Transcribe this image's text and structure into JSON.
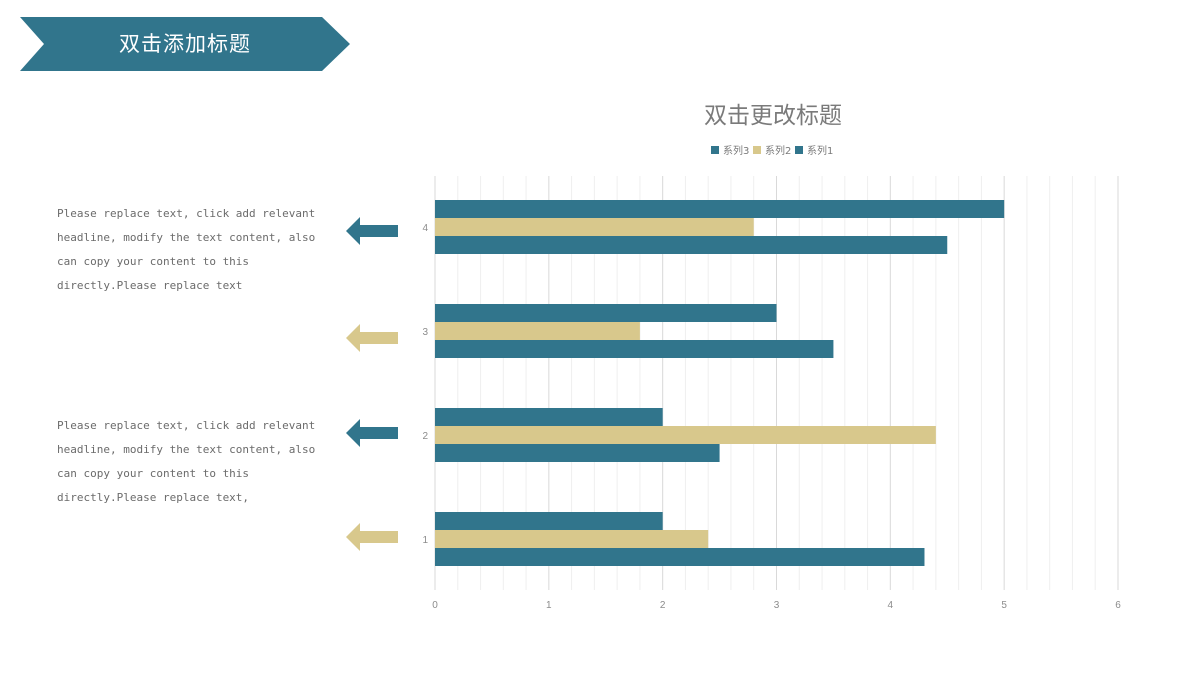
{
  "header": {
    "title": "双击添加标题",
    "color": "#31758C"
  },
  "text_blocks": [
    "Please replace text, click add relevant headline, modify the text content, also can copy your content to this directly.Please replace text",
    "Please replace text, click add relevant headline, modify the text content, also can copy your content to this directly.Please replace text,"
  ],
  "arrows": [
    {
      "color": "#31758C",
      "icon": "arrow-left-icon"
    },
    {
      "color": "#D8C88C",
      "icon": "arrow-left-icon"
    },
    {
      "color": "#31758C",
      "icon": "arrow-left-icon"
    },
    {
      "color": "#D8C88C",
      "icon": "arrow-left-icon"
    }
  ],
  "chart_data": {
    "type": "bar",
    "orientation": "horizontal",
    "title": "双击更改标题",
    "categories": [
      "1",
      "2",
      "3",
      "4"
    ],
    "series": [
      {
        "name": "系列1",
        "values": [
          4.3,
          2.5,
          3.5,
          4.5
        ],
        "color": "#31758C"
      },
      {
        "name": "系列2",
        "values": [
          2.4,
          4.4,
          1.8,
          2.8
        ],
        "color": "#D8C88C"
      },
      {
        "name": "系列3",
        "values": [
          2,
          2,
          3,
          5
        ],
        "color": "#31758C"
      }
    ],
    "legend_order": [
      "系列3",
      "系列2",
      "系列1"
    ],
    "legend_position": "top",
    "xlim": [
      0,
      6
    ],
    "xticks": [
      "0",
      "1",
      "2",
      "3",
      "4",
      "5",
      "6"
    ],
    "grid": true
  }
}
